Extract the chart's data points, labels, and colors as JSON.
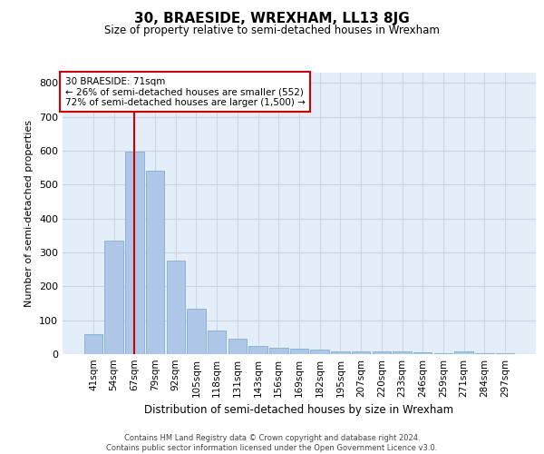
{
  "title": "30, BRAESIDE, WREXHAM, LL13 8JG",
  "subtitle": "Size of property relative to semi-detached houses in Wrexham",
  "xlabel": "Distribution of semi-detached houses by size in Wrexham",
  "ylabel": "Number of semi-detached properties",
  "categories": [
    "41sqm",
    "54sqm",
    "67sqm",
    "79sqm",
    "92sqm",
    "105sqm",
    "118sqm",
    "131sqm",
    "143sqm",
    "156sqm",
    "169sqm",
    "182sqm",
    "195sqm",
    "207sqm",
    "220sqm",
    "233sqm",
    "246sqm",
    "259sqm",
    "271sqm",
    "284sqm",
    "297sqm"
  ],
  "values": [
    60,
    335,
    597,
    540,
    275,
    135,
    70,
    45,
    23,
    20,
    15,
    13,
    8,
    7,
    7,
    7,
    5,
    2,
    8,
    2,
    2
  ],
  "bar_color": "#aec6e8",
  "bar_edge_color": "#8ab4d8",
  "property_line_x": 2.0,
  "annotation_text_line1": "30 BRAESIDE: 71sqm",
  "annotation_text_line2": "← 26% of semi-detached houses are smaller (552)",
  "annotation_text_line3": "72% of semi-detached houses are larger (1,500) →",
  "annotation_box_color": "#ffffff",
  "annotation_box_edge": "#cc0000",
  "vline_color": "#cc0000",
  "ylim": [
    0,
    830
  ],
  "yticks": [
    0,
    100,
    200,
    300,
    400,
    500,
    600,
    700,
    800
  ],
  "grid_color": "#c8d8e8",
  "bg_color": "#e4eef8",
  "footer_line1": "Contains HM Land Registry data © Crown copyright and database right 2024.",
  "footer_line2": "Contains public sector information licensed under the Open Government Licence v3.0."
}
